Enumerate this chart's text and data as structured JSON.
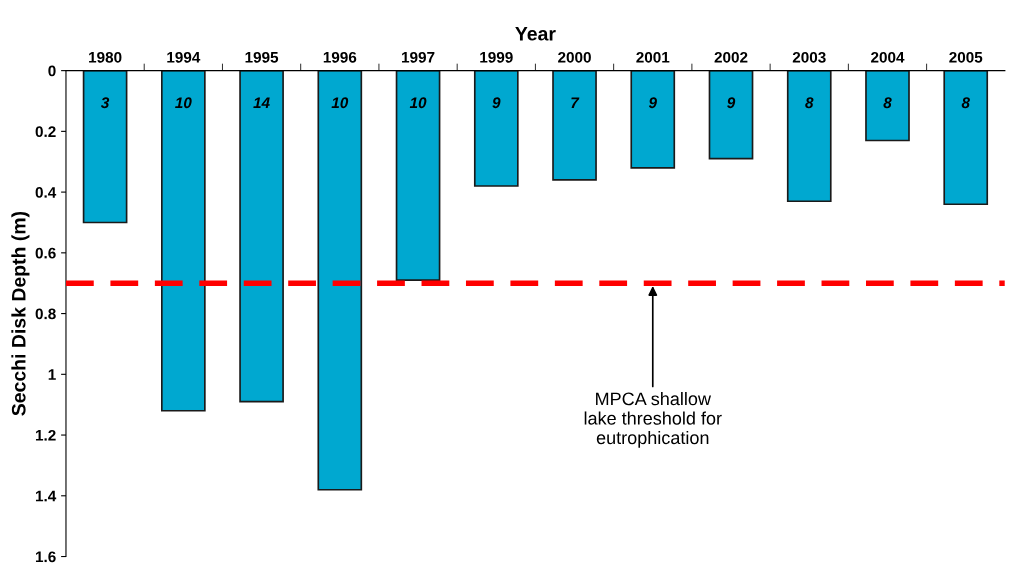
{
  "chart_data": {
    "type": "bar",
    "xlabel": "Year",
    "ylabel": "Secchi Disk Depth (m)",
    "categories": [
      "1980",
      "1994",
      "1995",
      "1996",
      "1997",
      "1999",
      "2000",
      "2001",
      "2002",
      "2003",
      "2004",
      "2005"
    ],
    "values": [
      0.5,
      1.12,
      1.09,
      1.38,
      0.69,
      0.38,
      0.36,
      0.32,
      0.29,
      0.43,
      0.23,
      0.44
    ],
    "color": "#00a8d0",
    "ylim": [
      1.6,
      0
    ],
    "yticks": [
      0,
      0.2,
      0.4,
      0.6,
      0.8,
      1,
      1.2,
      1.4,
      1.6
    ],
    "grid": false,
    "legend": false,
    "ref_lines": [
      {
        "axis": "y",
        "value": 0.7,
        "color": "#ff0000",
        "line_style": "dashed"
      }
    ],
    "annotations": [
      "3",
      "10",
      "14",
      "10",
      "10",
      "9",
      "7",
      "9",
      "9",
      "8",
      "8",
      "8",
      {
        "text": "MPCA shallow\nlake threshold for\neutrophication",
        "x": "2001",
        "y": 0.7
      }
    ]
  }
}
